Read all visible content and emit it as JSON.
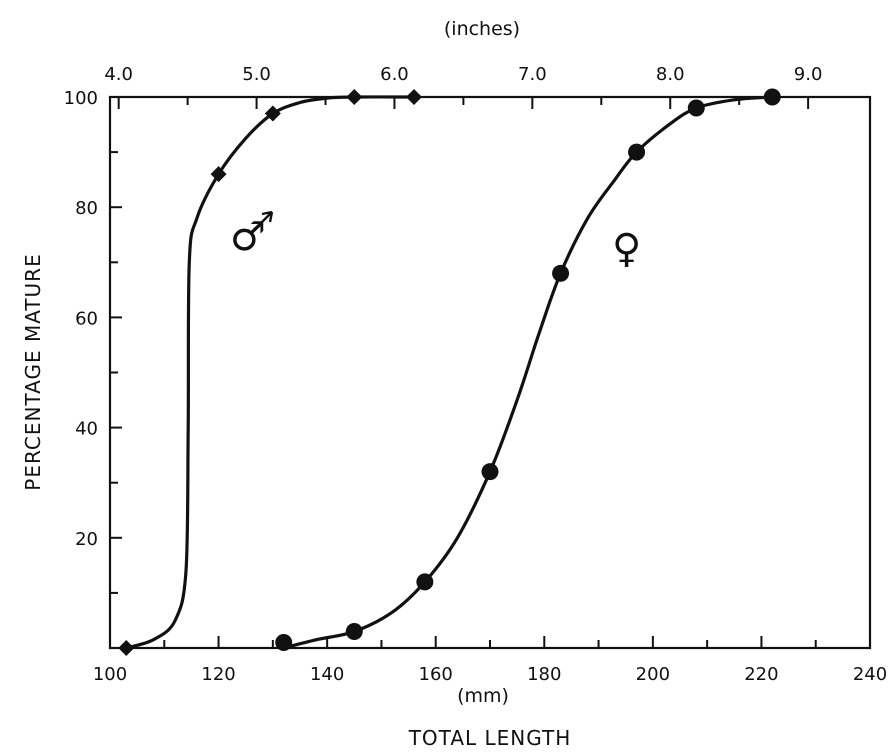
{
  "chart_data": {
    "type": "scatter",
    "xlabel": "TOTAL LENGTH",
    "xunit": "(mm)",
    "ylabel": "PERCENTAGE MATURE",
    "x_secondary_unit": "(inches)",
    "xlim": [
      100,
      240
    ],
    "ylim": [
      0,
      100
    ],
    "x_ticks": [
      100,
      120,
      140,
      160,
      180,
      200,
      220,
      240
    ],
    "y_ticks": [
      20,
      40,
      60,
      80,
      100
    ],
    "x_secondary_ticks": [
      "4.0",
      "5.0",
      "6.0",
      "7.0",
      "8.0",
      "9.0"
    ],
    "grid": false,
    "series": [
      {
        "name": "♂",
        "marker": "diamond",
        "points": [
          [
            103,
            0
          ],
          [
            120,
            86
          ],
          [
            130,
            97
          ],
          [
            145,
            100
          ],
          [
            156,
            100
          ]
        ],
        "curve": [
          [
            103,
            0
          ],
          [
            108,
            1.5
          ],
          [
            112,
            5
          ],
          [
            114,
            14
          ],
          [
            114.4,
            40
          ],
          [
            114.6,
            70
          ],
          [
            116,
            78
          ],
          [
            120,
            86
          ],
          [
            125,
            92.5
          ],
          [
            130,
            97
          ],
          [
            135,
            99
          ],
          [
            140,
            99.8
          ],
          [
            145,
            100
          ],
          [
            156,
            100
          ]
        ]
      },
      {
        "name": "♀",
        "marker": "circle",
        "points": [
          [
            132,
            1
          ],
          [
            145,
            3
          ],
          [
            158,
            12
          ],
          [
            170,
            32
          ],
          [
            183,
            68
          ],
          [
            197,
            90
          ],
          [
            208,
            98
          ],
          [
            222,
            100
          ]
        ],
        "curve": [
          [
            132,
            0
          ],
          [
            138,
            1.5
          ],
          [
            145,
            3
          ],
          [
            152,
            6.5
          ],
          [
            158,
            12
          ],
          [
            164,
            20
          ],
          [
            170,
            32
          ],
          [
            175,
            45
          ],
          [
            179,
            57
          ],
          [
            183,
            68
          ],
          [
            188,
            78
          ],
          [
            193,
            85
          ],
          [
            197,
            90
          ],
          [
            203,
            95
          ],
          [
            208,
            98
          ],
          [
            215,
            99.5
          ],
          [
            222,
            100
          ]
        ]
      }
    ]
  }
}
